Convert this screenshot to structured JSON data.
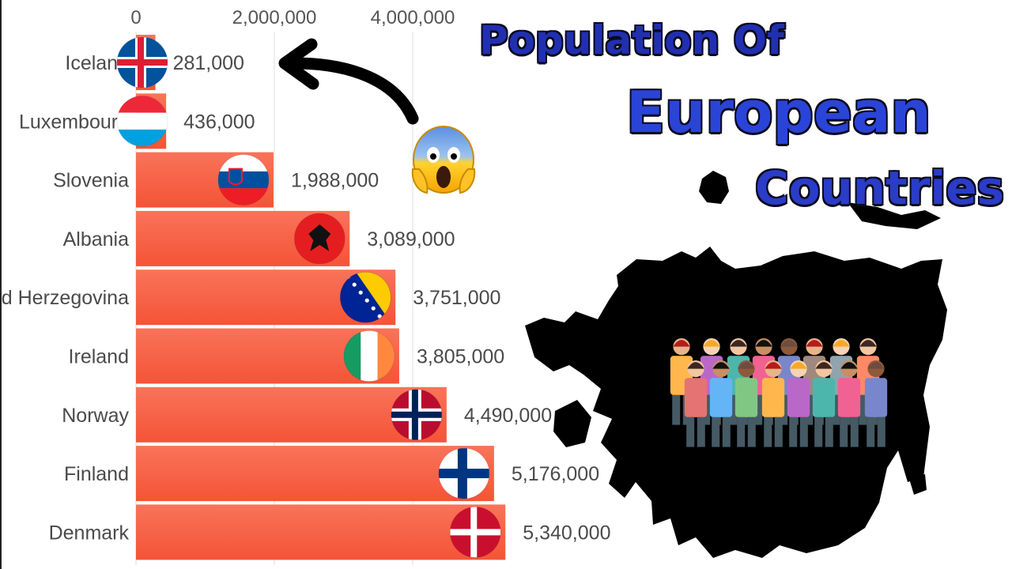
{
  "title": {
    "line1": "Population Of",
    "line2": "European",
    "line3": "Countries"
  },
  "colors": {
    "bar": "#f85c3c",
    "title_blue": "#2a3cc8",
    "map": "#000000"
  },
  "chart_data": {
    "type": "bar",
    "orientation": "horizontal",
    "categories": [
      "Iceland",
      "Luxembourg",
      "Slovenia",
      "Albania",
      "d Herzegovina",
      "Ireland",
      "Norway",
      "Finland",
      "Denmark"
    ],
    "values": [
      281000,
      436000,
      1988000,
      3089000,
      3751000,
      3805000,
      4490000,
      5176000,
      5340000
    ],
    "value_labels": [
      "281,000",
      "436,000",
      "1,988,000",
      "3,089,000",
      "3,751,000",
      "3,805,000",
      "4,490,000",
      "5,176,000",
      "5,340,000"
    ],
    "x_ticks": [
      0,
      2000000,
      4000000
    ],
    "x_tick_labels": [
      "0",
      "2,000,000",
      "4,000,000"
    ],
    "xlim": [
      0,
      4000000
    ],
    "axis_position": "top",
    "grid": true,
    "flags": [
      "iceland-flag-icon",
      "luxembourg-flag-icon",
      "slovenia-flag-icon",
      "albania-flag-icon",
      "bosnia-flag-icon",
      "ireland-flag-icon",
      "norway-flag-icon",
      "finland-flag-icon",
      "denmark-flag-icon"
    ]
  },
  "decorations": {
    "arrow": "curved-arrow-icon",
    "emoji": "screaming-face-icon",
    "map": "europe-map-silhouette-icon",
    "crowd": "people-crowd-icon"
  }
}
